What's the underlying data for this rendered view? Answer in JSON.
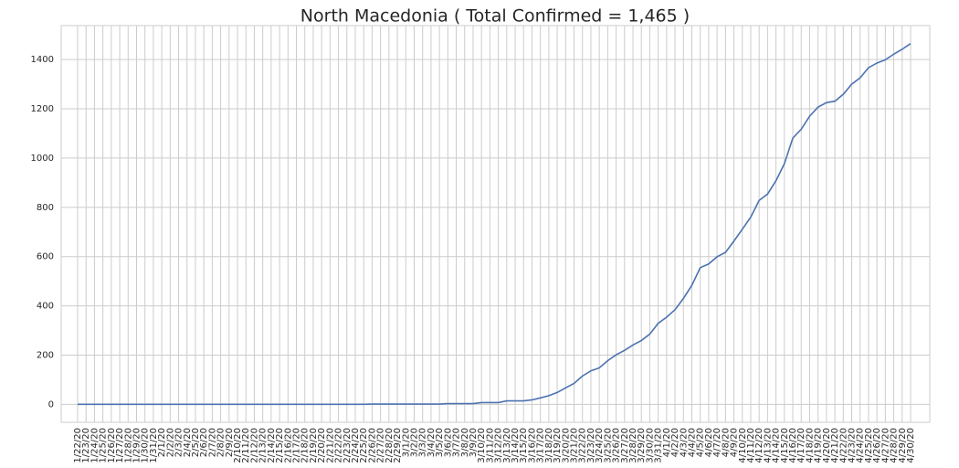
{
  "chart_data": {
    "type": "line",
    "title": "North Macedonia ( Total Confirmed = 1,465 )",
    "categories": [
      "1/22/20",
      "1/23/20",
      "1/24/20",
      "1/25/20",
      "1/26/20",
      "1/27/20",
      "1/28/20",
      "1/29/20",
      "1/30/20",
      "1/31/20",
      "2/1/20",
      "2/2/20",
      "2/3/20",
      "2/4/20",
      "2/5/20",
      "2/6/20",
      "2/7/20",
      "2/8/20",
      "2/9/20",
      "2/10/20",
      "2/11/20",
      "2/12/20",
      "2/13/20",
      "2/14/20",
      "2/15/20",
      "2/16/20",
      "2/17/20",
      "2/18/20",
      "2/19/20",
      "2/20/20",
      "2/21/20",
      "2/22/20",
      "2/23/20",
      "2/24/20",
      "2/25/20",
      "2/26/20",
      "2/27/20",
      "2/28/20",
      "2/29/20",
      "3/1/20",
      "3/2/20",
      "3/3/20",
      "3/4/20",
      "3/5/20",
      "3/6/20",
      "3/7/20",
      "3/8/20",
      "3/9/20",
      "3/10/20",
      "3/11/20",
      "3/12/20",
      "3/13/20",
      "3/14/20",
      "3/15/20",
      "3/16/20",
      "3/17/20",
      "3/18/20",
      "3/19/20",
      "3/20/20",
      "3/21/20",
      "3/22/20",
      "3/23/20",
      "3/24/20",
      "3/25/20",
      "3/26/20",
      "3/27/20",
      "3/28/20",
      "3/29/20",
      "3/30/20",
      "3/31/20",
      "4/1/20",
      "4/2/20",
      "4/3/20",
      "4/4/20",
      "4/5/20",
      "4/6/20",
      "4/7/20",
      "4/8/20",
      "4/9/20",
      "4/10/20",
      "4/11/20",
      "4/12/20",
      "4/13/20",
      "4/14/20",
      "4/15/20",
      "4/16/20",
      "4/17/20",
      "4/18/20",
      "4/19/20",
      "4/20/20",
      "4/21/20",
      "4/22/20",
      "4/23/20",
      "4/24/20",
      "4/25/20",
      "4/26/20",
      "4/27/20",
      "4/28/20",
      "4/29/20",
      "4/30/20"
    ],
    "values": [
      0,
      0,
      0,
      0,
      0,
      0,
      0,
      0,
      0,
      0,
      0,
      0,
      0,
      0,
      0,
      0,
      0,
      0,
      0,
      0,
      0,
      0,
      0,
      0,
      0,
      0,
      0,
      0,
      0,
      0,
      0,
      0,
      0,
      0,
      0,
      1,
      1,
      1,
      1,
      1,
      1,
      1,
      1,
      1,
      3,
      3,
      3,
      3,
      7,
      7,
      7,
      14,
      14,
      14,
      18,
      26,
      35,
      48,
      67,
      85,
      115,
      136,
      148,
      177,
      201,
      219,
      241,
      259,
      285,
      329,
      354,
      384,
      430,
      483,
      555,
      570,
      599,
      617,
      663,
      711,
      760,
      828,
      854,
      908,
      977,
      1081,
      1117,
      1170,
      1207,
      1225,
      1231,
      1259,
      1300,
      1326,
      1367,
      1386,
      1399,
      1422,
      1442,
      1465
    ],
    "color": "#4c72b0",
    "ylim": [
      -73,
      1538
    ],
    "yticks": [
      0,
      200,
      400,
      600,
      800,
      1000,
      1200,
      1400
    ],
    "grid": true
  }
}
